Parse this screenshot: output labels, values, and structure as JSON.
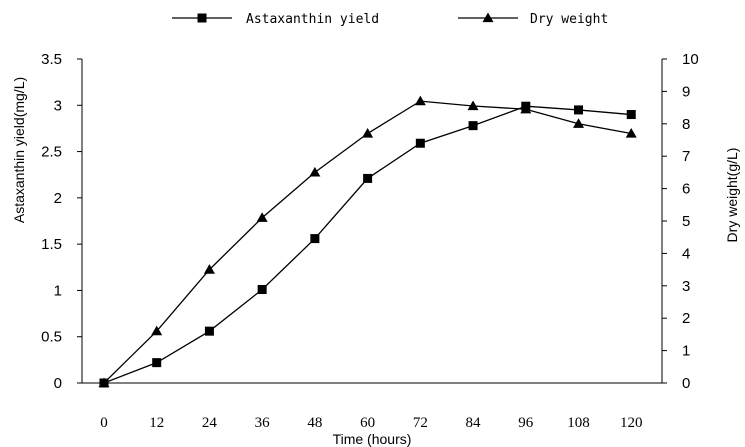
{
  "chart_data": {
    "type": "line",
    "x": [
      0,
      12,
      24,
      36,
      48,
      60,
      72,
      84,
      96,
      108,
      120
    ],
    "xlabel": "Time (hours)",
    "xlim": [
      -5,
      127
    ],
    "legend_position": "top-center",
    "grid": false,
    "axes": {
      "left": {
        "label": "Astaxanthin yield(mg/L)",
        "ylim": [
          0,
          3.5
        ],
        "ticks": [
          "0",
          "0.5",
          "1",
          "1.5",
          "2",
          "2.5",
          "3",
          "3.5"
        ]
      },
      "right": {
        "label": "Dry weight(g/L)",
        "ylim": [
          0,
          10
        ],
        "ticks": [
          "0",
          "1",
          "2",
          "3",
          "4",
          "5",
          "6",
          "7",
          "8",
          "9",
          "10"
        ]
      }
    },
    "series": [
      {
        "name": "Astaxanthin yield",
        "marker": "square",
        "axis": "left",
        "values": [
          0,
          0.22,
          0.56,
          1.01,
          1.56,
          2.21,
          2.59,
          2.78,
          2.99,
          2.95,
          2.9
        ]
      },
      {
        "name": "Dry weight",
        "marker": "triangle",
        "axis": "right",
        "values": [
          0,
          1.6,
          3.5,
          5.1,
          6.5,
          7.7,
          8.7,
          8.55,
          8.45,
          8.0,
          7.7
        ]
      }
    ]
  }
}
